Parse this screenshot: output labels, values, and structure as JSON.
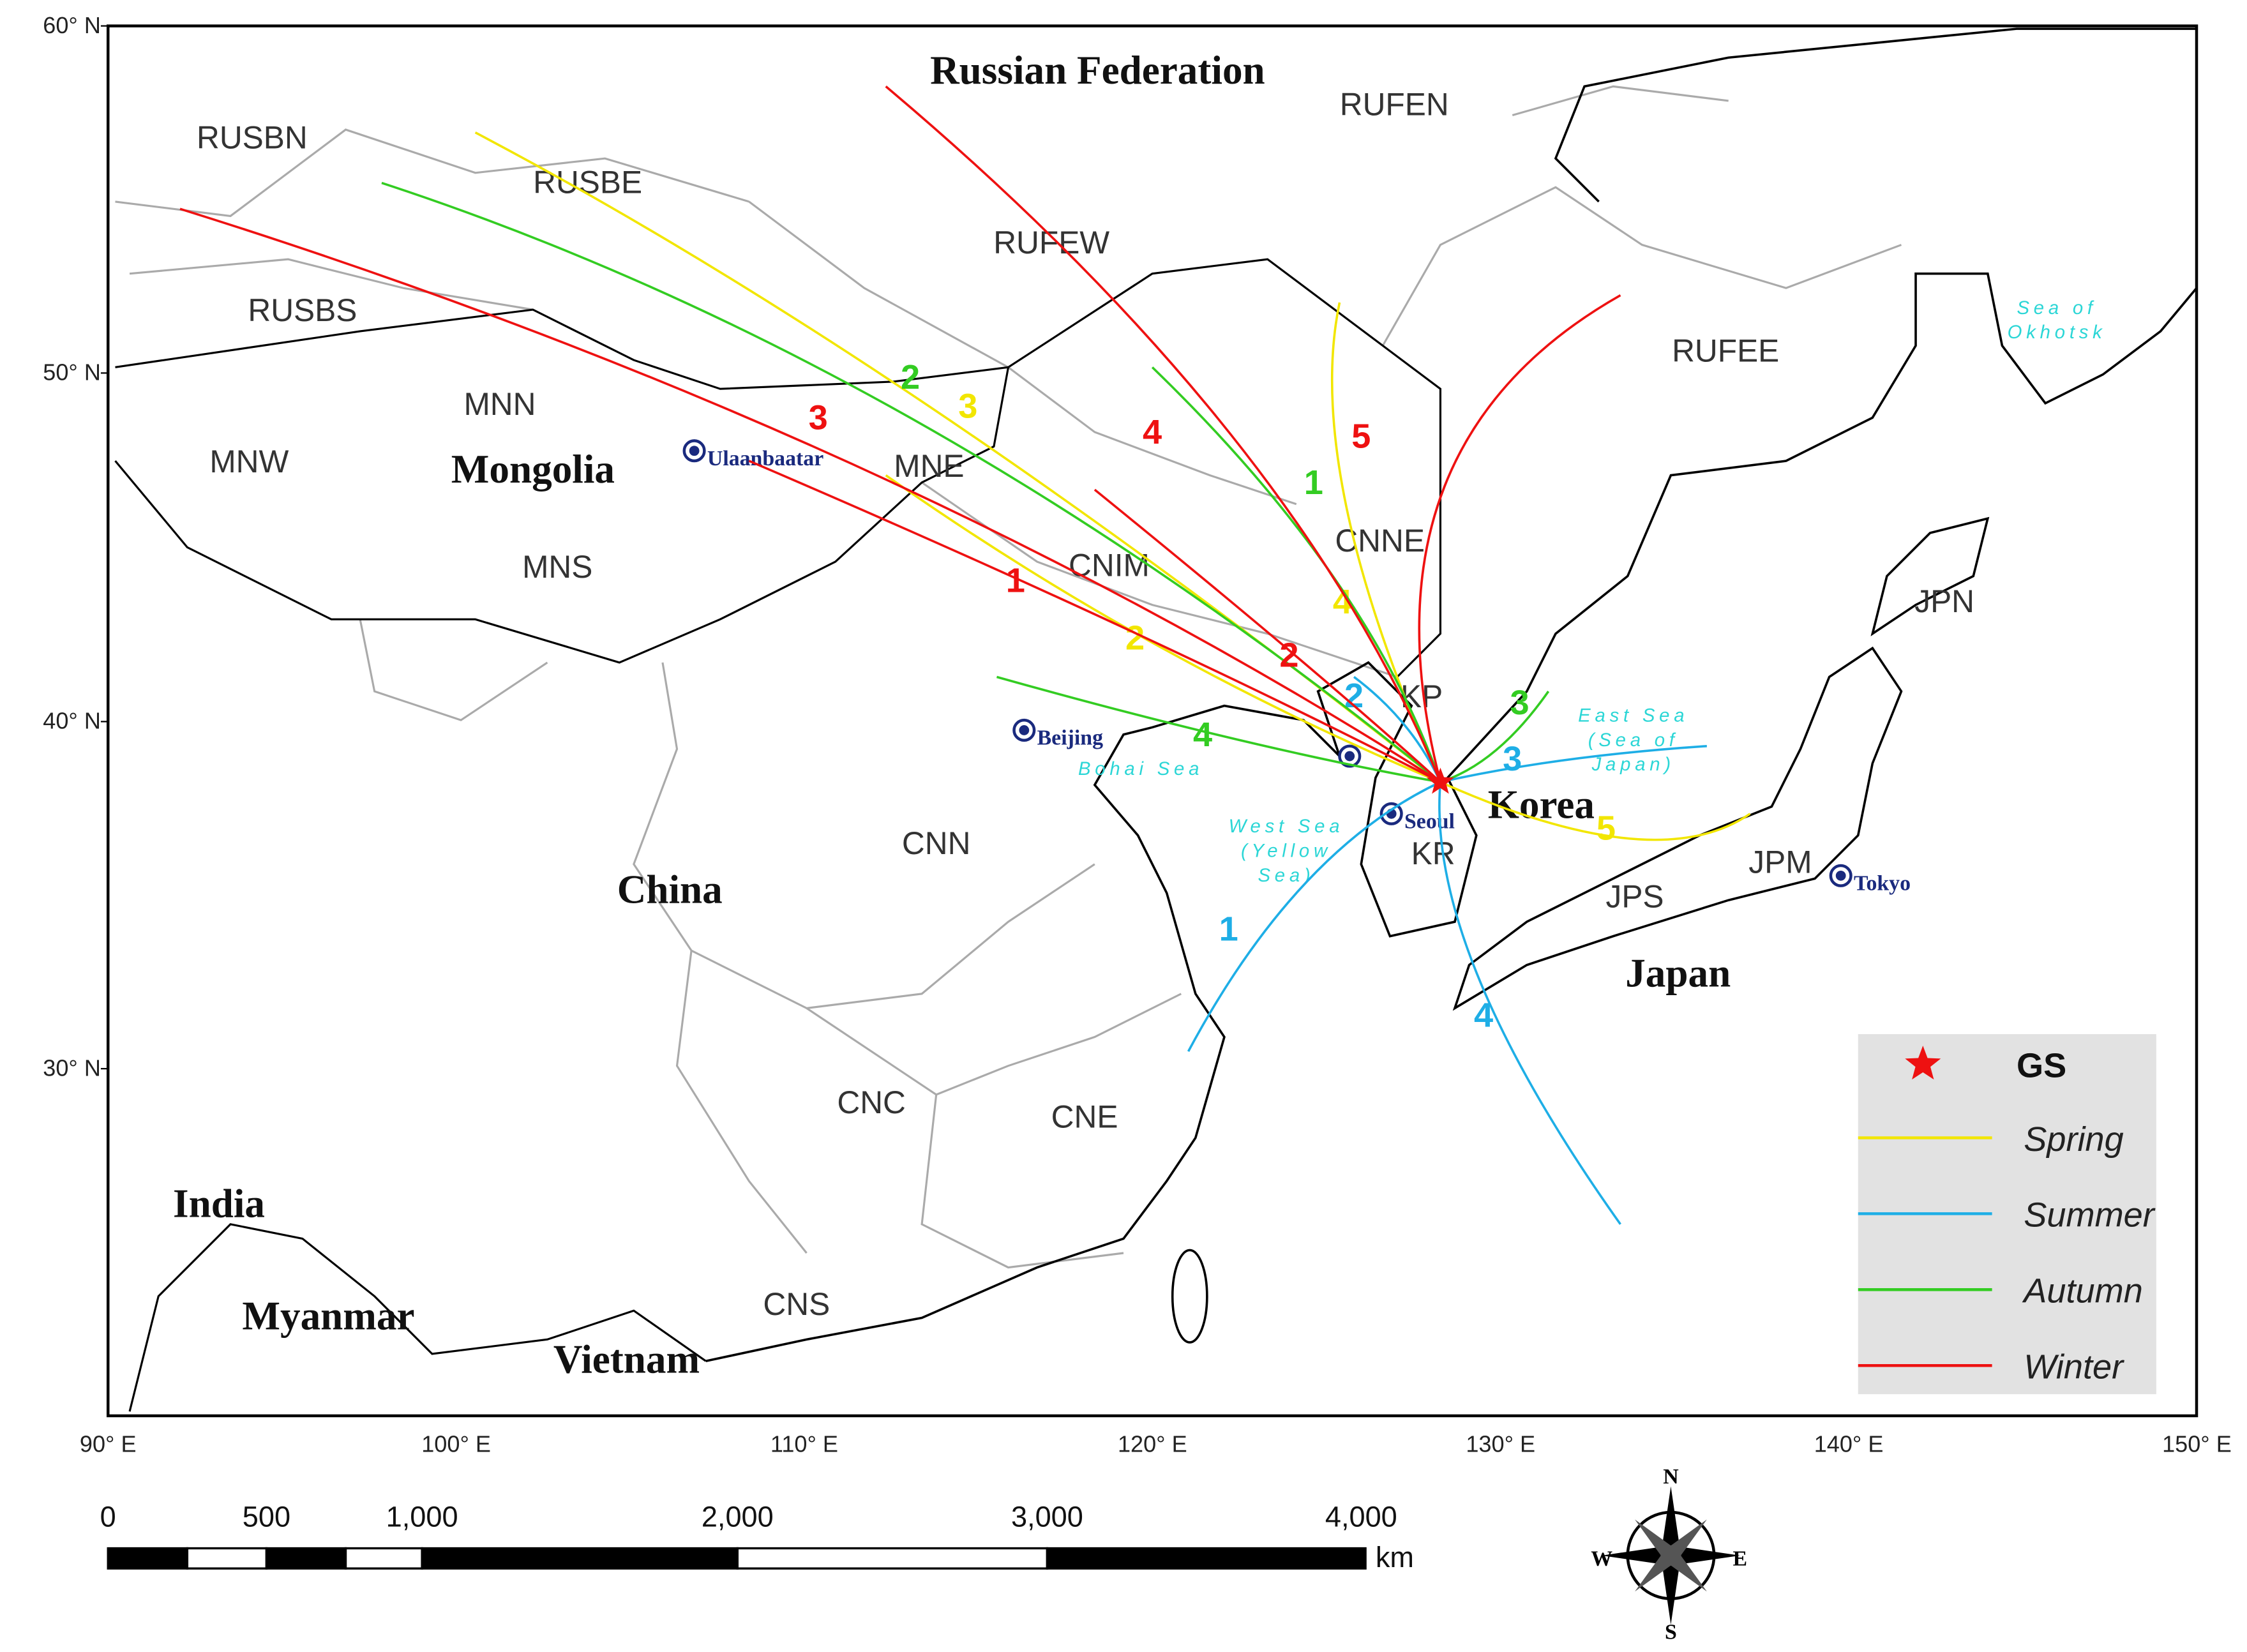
{
  "map": {
    "lat_labels": [
      "60° N",
      "50° N",
      "40° N",
      "30° N"
    ],
    "lon_labels": [
      "90° E",
      "100° E",
      "110° E",
      "120° E",
      "130° E",
      "140° E",
      "150° E"
    ],
    "countries": [
      "Russian Federation",
      "Mongolia",
      "China",
      "Korea",
      "Japan",
      "India",
      "Myanmar",
      "Vietnam"
    ],
    "regions": [
      "RUSBN",
      "RUSBE",
      "RUSBS",
      "RUFEN",
      "RUFEW",
      "RUFEE",
      "MNN",
      "MNW",
      "MNE",
      "MNS",
      "CNIM",
      "CNNE",
      "KP",
      "KR",
      "JPN",
      "JPM",
      "JPS",
      "CNN",
      "CNC",
      "CNE",
      "CNS"
    ],
    "cities": [
      "Ulaanbaatar",
      "Beijing",
      "Seoul",
      "Tokyo"
    ],
    "seas": [
      [
        "Sea of",
        "Okhotsk"
      ],
      [
        "East Sea",
        "(Sea of",
        "Japan)"
      ],
      [
        "Bohai Sea"
      ],
      [
        "West Sea",
        "(Yellow",
        "Sea)"
      ]
    ]
  },
  "scale_bar": {
    "labels": [
      "0",
      "500",
      "1,000",
      "2,000",
      "3,000",
      "4,000"
    ],
    "unit": "km"
  },
  "compass": [
    "N",
    "S",
    "E",
    "W"
  ],
  "legend": {
    "site": "GS",
    "site_color": "#ee1111",
    "seasons": [
      {
        "name": "Spring",
        "color": "#f2e600",
        "trajectory_labels": [
          "2",
          "3",
          "4",
          "5"
        ]
      },
      {
        "name": "Summer",
        "color": "#1eaee6",
        "trajectory_labels": [
          "1",
          "2",
          "3",
          "4"
        ]
      },
      {
        "name": "Autumn",
        "color": "#33cc22",
        "trajectory_labels": [
          "1",
          "2",
          "3",
          "4"
        ]
      },
      {
        "name": "Winter",
        "color": "#ee1111",
        "trajectory_labels": [
          "1",
          "2",
          "3",
          "4",
          "5"
        ]
      }
    ]
  }
}
